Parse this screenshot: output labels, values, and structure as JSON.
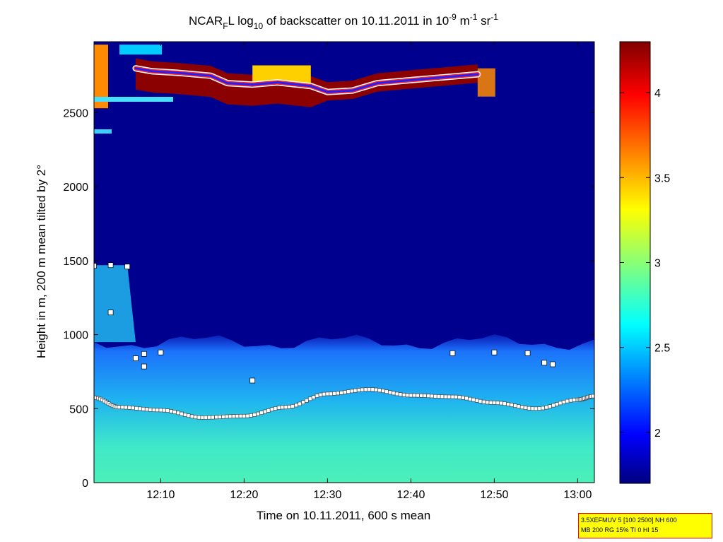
{
  "chart_data": {
    "type": "heatmap",
    "title": {
      "t1": "NCAR",
      "t2": "F",
      "t3": "L log",
      "t4": "10",
      "t5": " of backscatter on 10.11.2011 in 10",
      "t6": "-9",
      "t7": " m",
      "t8": "-1",
      "t9": " sr",
      "t10": "-1"
    },
    "xlabel": "Time on 10.11.2011, 600 s mean",
    "ylabel": "Height in m, 200 m mean tilted by 2°",
    "xlim": [
      "12:02",
      "13:02"
    ],
    "ylim": [
      0,
      2980
    ],
    "x_ticks": [
      "12:10",
      "12:20",
      "12:30",
      "12:40",
      "12:50",
      "13:00"
    ],
    "y_ticks": [
      "0",
      "500",
      "1000",
      "1500",
      "2000",
      "2500"
    ],
    "colorbar": {
      "range": [
        1.7,
        4.3
      ],
      "ticks": [
        "2",
        "2.5",
        "3",
        "3.5",
        "4"
      ],
      "colormap": "jet"
    },
    "layers": {
      "surface_layer_log_backscatter": 2.9,
      "aerosol_layer_top_m": 950,
      "free_troposphere_log_backscatter": 1.8,
      "cloud_layer_m": [
        2550,
        2850
      ],
      "cloud_log_backscatter": 4.3
    },
    "boundary_layer_height": {
      "x": [
        "12:02",
        "12:05",
        "12:10",
        "12:15",
        "12:20",
        "12:25",
        "12:30",
        "12:35",
        "12:40",
        "12:45",
        "12:50",
        "12:55",
        "13:00",
        "13:02"
      ],
      "y": [
        575,
        510,
        490,
        440,
        450,
        510,
        600,
        630,
        590,
        580,
        540,
        500,
        560,
        585
      ]
    },
    "cloud_base_height": {
      "x": [
        "12:07",
        "12:09",
        "12:12",
        "12:16",
        "12:18",
        "12:21",
        "12:24",
        "12:28",
        "12:30",
        "12:33",
        "12:36",
        "12:40",
        "12:44",
        "12:48"
      ],
      "y": [
        2800,
        2780,
        2770,
        2750,
        2700,
        2690,
        2705,
        2680,
        2640,
        2650,
        2700,
        2720,
        2740,
        2760
      ]
    },
    "other_layer_markers": [
      {
        "time": "12:02",
        "height": 1465
      },
      {
        "time": "12:04",
        "height": 1470
      },
      {
        "time": "12:06",
        "height": 1460
      },
      {
        "time": "12:04",
        "height": 1150
      },
      {
        "time": "12:07",
        "height": 840
      },
      {
        "time": "12:08",
        "height": 785
      },
      {
        "time": "12:08",
        "height": 870
      },
      {
        "time": "12:10",
        "height": 880
      },
      {
        "time": "12:21",
        "height": 690
      },
      {
        "time": "12:45",
        "height": 875
      },
      {
        "time": "12:50",
        "height": 880
      },
      {
        "time": "12:54",
        "height": 875
      },
      {
        "time": "12:56",
        "height": 810
      },
      {
        "time": "12:57",
        "height": 800
      }
    ]
  },
  "info_box": {
    "line1": "3.5XEFMUV 5 [100 2500] NH 600",
    "line2": "MB 200 RG 15% TI 0 HI 15"
  }
}
